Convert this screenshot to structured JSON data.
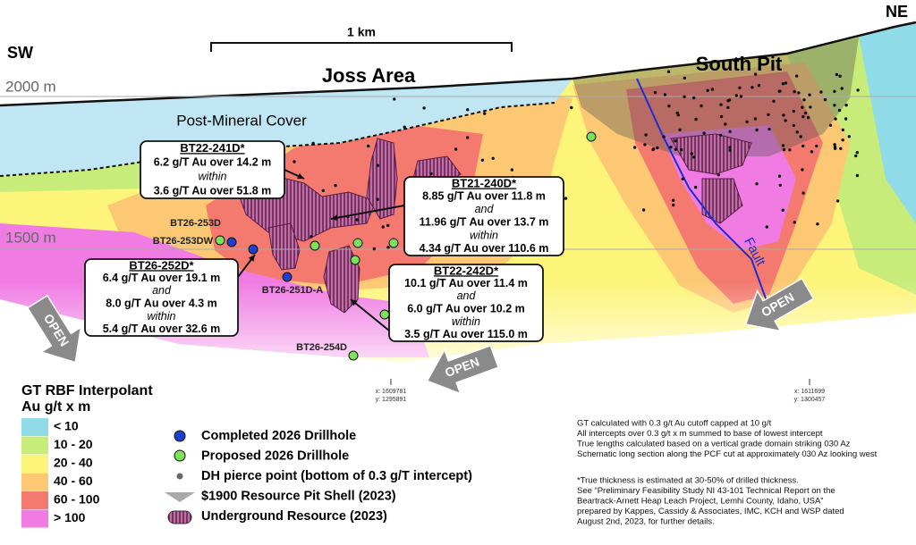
{
  "orientation": {
    "left": "SW",
    "right": "NE"
  },
  "scale_bar": "1 km",
  "elevations": [
    "2000 m",
    "1500 m"
  ],
  "areas": [
    "Joss Area",
    "South Pit"
  ],
  "cover_label": "Post-Mineral Cover",
  "fault_label": "Fault",
  "open_labels": [
    "OPEN",
    "OPEN",
    "OPEN"
  ],
  "callouts": [
    {
      "title": "BT22-241D*",
      "lines": [
        "6.2 g/T Au over 14.2 m",
        "within",
        "3.6 g/T Au over 51.8 m"
      ]
    },
    {
      "title": "BT21-240D*",
      "lines": [
        "8.85 g/T Au over 11.8 m",
        "and",
        "11.96 g/T Au over 13.7 m",
        "within",
        "4.34 g/T Au over 110.6 m"
      ]
    },
    {
      "title": "BT26-252D*",
      "lines": [
        "6.4 g/T Au over 19.1 m",
        "and",
        "8.0 g/T Au over 4.3 m",
        "within",
        "5.4 g/T Au over 32.6 m"
      ]
    },
    {
      "title": "BT22-242D*",
      "lines": [
        "10.1 g/T Au over 11.4 m",
        "and",
        "6.0 g/T Au over 10.2 m",
        "within",
        "3.5 g/T Au over 115.0 m"
      ]
    }
  ],
  "drillholes": [
    "BT26-253D",
    "BT26-253DW",
    "BT26-251D-A",
    "BT26-254D"
  ],
  "coordinates": [
    {
      "x": "x: 1609781",
      "y": "y: 1295891"
    },
    {
      "x": "x: 1611699",
      "y": "y: 1300457"
    }
  ],
  "legend": {
    "title": [
      "GT RBF Interpolant",
      "Au g/t x m"
    ],
    "classes": [
      "< 10",
      "10 - 20",
      "20 - 40",
      "40 - 60",
      "60 - 100",
      "> 100"
    ],
    "symbols": [
      "Completed 2026 Drillhole",
      "Proposed 2026 Drillhole",
      "DH pierce point (bottom of 0.3 g/T intercept)",
      "$1900 Resource Pit Shell (2023)",
      "Underground Resource (2023)"
    ]
  },
  "notes": [
    [
      "GT calculated with 0.3 g/t Au cutoff capped at 10 g/t",
      "All intercepts over 0.3 g/t x m summed to base of lowest intercept",
      "True lengths calculated based on a vertical grade domain striking 030 Az",
      "Schematic long section along the PCF cut at approximately 030 Az looking west"
    ],
    [
      "*True thickness is estimated at 30-50% of drilled thickness.",
      "See “Preliminary Feasibility Study NI 43-101 Technical Report on the",
      "Beartrack-Arnett Heap Leach Project, Lemhi County, Idaho, USA”",
      "prepared by Kappes, Cassidy & Associates, IMC, KCH and WSP dated",
      "August 2nd, 2023, for further details."
    ]
  ]
}
